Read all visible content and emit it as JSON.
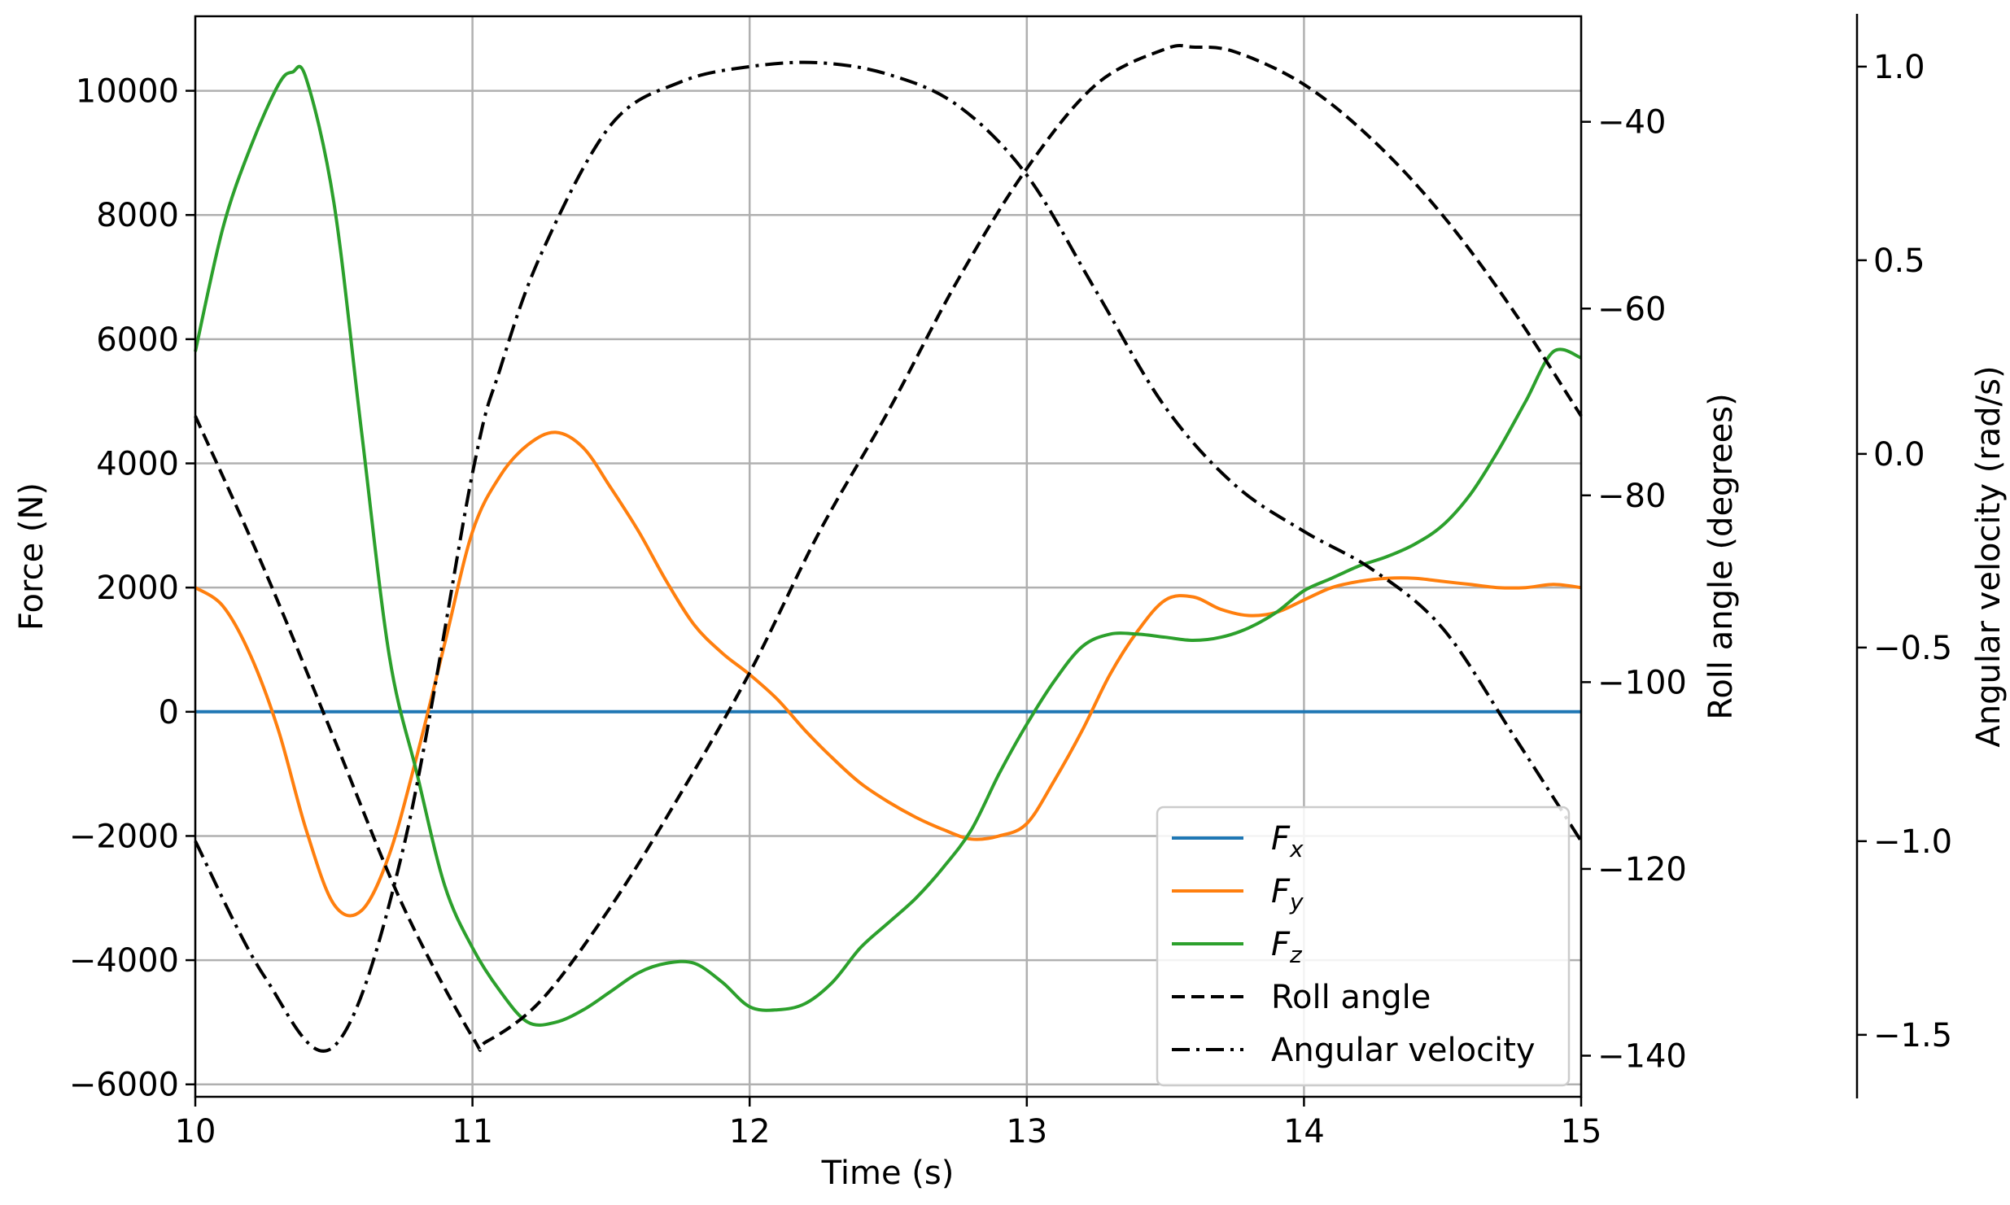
{
  "chart_data": {
    "type": "line",
    "title": "",
    "xlabel": "Time (s)",
    "x_ticks": [
      10,
      11,
      12,
      13,
      14,
      15
    ],
    "xlim": [
      10,
      15
    ],
    "grid": true,
    "legend_position": "lower-right",
    "axes": {
      "force": {
        "label": "Force (N)",
        "side": "left",
        "ylim": [
          -6200,
          11200
        ],
        "ticks": [
          10000,
          8000,
          6000,
          4000,
          2000,
          0,
          -2000,
          -4000,
          -6000
        ],
        "tick_labels": [
          "10000",
          "8000",
          "6000",
          "4000",
          "2000",
          "0",
          "−2000",
          "−4000",
          "−6000"
        ]
      },
      "roll": {
        "label": "Roll angle (degrees)",
        "side": "right",
        "ylim": [
          -144.4,
          -28.7
        ],
        "ticks": [
          -40,
          -60,
          -80,
          -100,
          -120,
          -140
        ],
        "tick_labels": [
          "−40",
          "−60",
          "−80",
          "−100",
          "−120",
          "−140"
        ]
      },
      "angvel": {
        "label": "Angular velocity (rad/s)",
        "side": "right-outer",
        "ylim": [
          -1.66,
          1.13
        ],
        "ticks": [
          1.0,
          0.5,
          0.0,
          -0.5,
          -1.0,
          -1.5
        ],
        "tick_labels": [
          "1.0",
          "0.5",
          "0.0",
          "−0.5",
          "−1.0",
          "−1.5"
        ]
      }
    },
    "series": [
      {
        "name": "Fx",
        "legend_main": "F",
        "legend_sub": "x",
        "axis": "force",
        "color": "#1f77b4",
        "style": "solid",
        "x": [
          10,
          11,
          12,
          13,
          14,
          15
        ],
        "y": [
          0,
          0,
          0,
          0,
          0,
          0
        ]
      },
      {
        "name": "Fy",
        "legend_main": "F",
        "legend_sub": "y",
        "axis": "force",
        "color": "#ff7f0e",
        "style": "solid",
        "x": [
          10,
          10.1,
          10.2,
          10.3,
          10.4,
          10.5,
          10.6,
          10.7,
          10.8,
          10.9,
          11.0,
          11.1,
          11.2,
          11.3,
          11.4,
          11.5,
          11.6,
          11.7,
          11.8,
          11.9,
          12.0,
          12.1,
          12.2,
          12.3,
          12.4,
          12.5,
          12.6,
          12.7,
          12.8,
          12.9,
          13.0,
          13.1,
          13.2,
          13.3,
          13.4,
          13.5,
          13.6,
          13.7,
          13.8,
          13.9,
          14.0,
          14.1,
          14.2,
          14.3,
          14.4,
          14.5,
          14.6,
          14.7,
          14.8,
          14.9,
          15.0
        ],
        "y": [
          2000,
          1700,
          900,
          -300,
          -1900,
          -3100,
          -3200,
          -2300,
          -700,
          1100,
          2900,
          3800,
          4300,
          4500,
          4250,
          3600,
          2900,
          2100,
          1400,
          950,
          600,
          200,
          -300,
          -750,
          -1150,
          -1450,
          -1700,
          -1900,
          -2050,
          -2000,
          -1800,
          -1100,
          -300,
          600,
          1300,
          1800,
          1850,
          1650,
          1550,
          1600,
          1800,
          2000,
          2100,
          2150,
          2150,
          2100,
          2050,
          2000,
          2000,
          2050,
          2000
        ]
      },
      {
        "name": "Fz",
        "legend_main": "F",
        "legend_sub": "z",
        "axis": "force",
        "color": "#2ca02c",
        "style": "solid",
        "x": [
          10,
          10.1,
          10.2,
          10.3,
          10.35,
          10.4,
          10.5,
          10.6,
          10.7,
          10.8,
          10.9,
          11.0,
          11.1,
          11.2,
          11.3,
          11.4,
          11.5,
          11.6,
          11.7,
          11.8,
          11.9,
          12.0,
          12.1,
          12.2,
          12.3,
          12.4,
          12.5,
          12.6,
          12.7,
          12.8,
          12.9,
          13.0,
          13.1,
          13.2,
          13.3,
          13.4,
          13.5,
          13.6,
          13.7,
          13.8,
          13.9,
          14.0,
          14.1,
          14.2,
          14.3,
          14.4,
          14.5,
          14.6,
          14.7,
          14.8,
          14.9,
          15.0
        ],
        "y": [
          5800,
          7800,
          9100,
          10100,
          10300,
          10200,
          8200,
          4500,
          900,
          -1000,
          -2800,
          -3800,
          -4500,
          -5000,
          -5000,
          -4800,
          -4500,
          -4200,
          -4050,
          -4050,
          -4350,
          -4750,
          -4800,
          -4700,
          -4350,
          -3800,
          -3400,
          -3000,
          -2500,
          -1900,
          -1000,
          -200,
          500,
          1050,
          1250,
          1250,
          1200,
          1150,
          1200,
          1350,
          1600,
          1950,
          2150,
          2350,
          2500,
          2700,
          3000,
          3500,
          4200,
          5000,
          5800,
          5700
        ]
      },
      {
        "name": "Roll angle",
        "legend_main": "Roll angle",
        "legend_sub": "",
        "axis": "roll",
        "color": "#000000",
        "style": "dashed",
        "x": [
          10,
          10.25,
          10.5,
          10.75,
          11.0,
          11.05,
          11.25,
          11.5,
          11.75,
          12.0,
          12.25,
          12.5,
          12.75,
          13.0,
          13.25,
          13.5,
          13.6,
          13.75,
          14.0,
          14.25,
          14.5,
          14.75,
          15.0
        ],
        "y": [
          -71.5,
          -88,
          -106,
          -124,
          -138,
          -138.5,
          -134,
          -124,
          -112,
          -99,
          -84,
          -71,
          -57,
          -45,
          -36,
          -32.2,
          -32.0,
          -32.5,
          -36,
          -42,
          -50,
          -60,
          -71.5
        ]
      },
      {
        "name": "Angular velocity",
        "legend_main": "Angular velocity",
        "legend_sub": "",
        "axis": "angvel",
        "color": "#000000",
        "style": "dashdot",
        "x": [
          10,
          10.25,
          10.5,
          10.75,
          11.0,
          11.1,
          11.25,
          11.5,
          11.75,
          12.0,
          12.25,
          12.5,
          12.75,
          13.0,
          13.25,
          13.5,
          13.75,
          14.0,
          14.25,
          14.5,
          14.75,
          15.0
        ],
        "y": [
          -1.0,
          -1.35,
          -1.53,
          -1.02,
          -0.05,
          0.22,
          0.52,
          0.85,
          0.96,
          1.0,
          1.01,
          0.98,
          0.9,
          0.72,
          0.42,
          0.12,
          -0.08,
          -0.2,
          -0.3,
          -0.45,
          -0.72,
          -1.0
        ]
      }
    ]
  }
}
